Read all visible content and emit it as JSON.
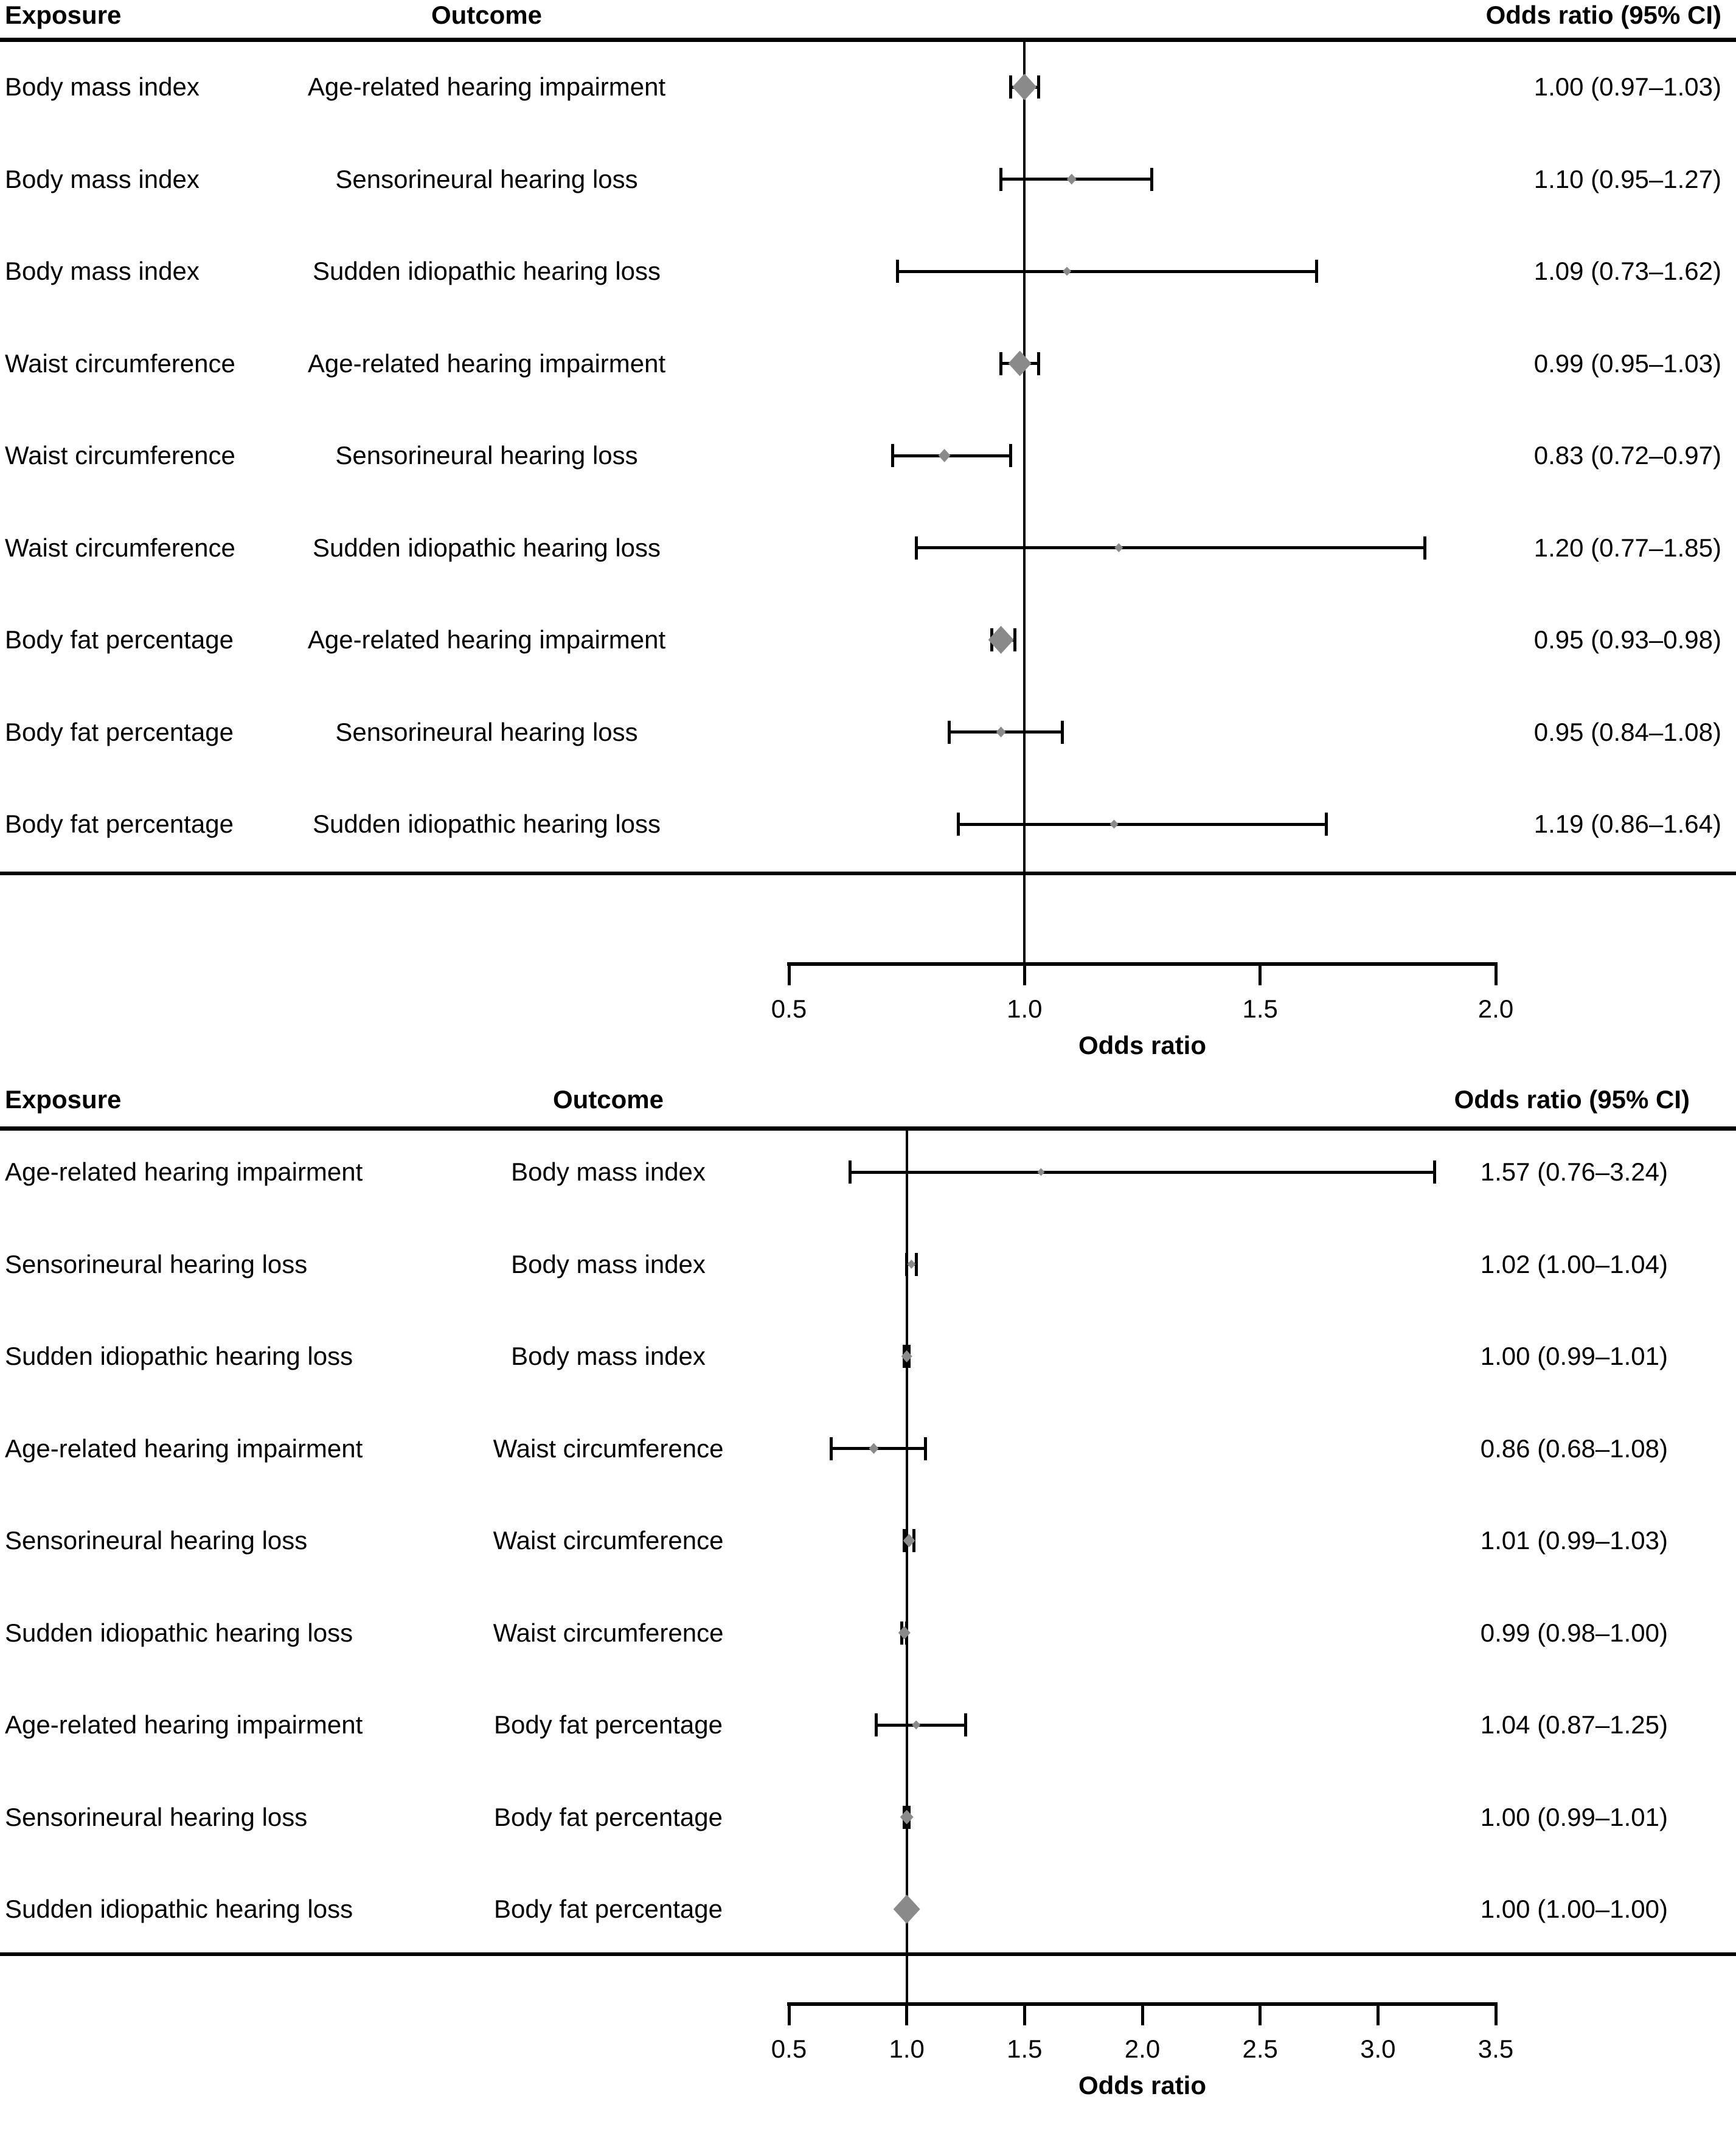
{
  "figure": {
    "background": "#ffffff",
    "text_color": "#000000",
    "line_color": "#000000",
    "marker_color": "#8a8a8a"
  },
  "chart_data": [
    {
      "type": "forest",
      "columns": {
        "exposure": "Exposure",
        "outcome": "Outcome",
        "or_ci": "Odds ratio (95% CI)"
      },
      "xlabel": "Odds ratio",
      "xlim": [
        0.5,
        2.0
      ],
      "xticks": [
        0.5,
        1.0,
        1.5,
        2.0
      ],
      "xtick_labels": [
        "0.5",
        "1.0",
        "1.5",
        "2.0"
      ],
      "reference_line": 1.0,
      "rows": [
        {
          "exposure": "Body mass index",
          "outcome": "Age-related hearing impairment",
          "or": 1.0,
          "ci_low": 0.97,
          "ci_high": 1.03,
          "or_ci_text": "1.00 (0.97–1.03)",
          "marker_size": 40
        },
        {
          "exposure": "Body mass index",
          "outcome": "Sensorineural hearing loss",
          "or": 1.1,
          "ci_low": 0.95,
          "ci_high": 1.27,
          "or_ci_text": "1.10 (0.95–1.27)",
          "marker_size": 16
        },
        {
          "exposure": "Body mass index",
          "outcome": "Sudden idiopathic hearing loss",
          "or": 1.09,
          "ci_low": 0.73,
          "ci_high": 1.62,
          "or_ci_text": "1.09 (0.73–1.62)",
          "marker_size": 14
        },
        {
          "exposure": "Waist circumference",
          "outcome": "Age-related hearing impairment",
          "or": 0.99,
          "ci_low": 0.95,
          "ci_high": 1.03,
          "or_ci_text": "0.99 (0.95–1.03)",
          "marker_size": 38
        },
        {
          "exposure": "Waist circumference",
          "outcome": "Sensorineural hearing loss",
          "or": 0.83,
          "ci_low": 0.72,
          "ci_high": 0.97,
          "or_ci_text": "0.83 (0.72–0.97)",
          "marker_size": 20
        },
        {
          "exposure": "Waist circumference",
          "outcome": "Sudden idiopathic hearing loss",
          "or": 1.2,
          "ci_low": 0.77,
          "ci_high": 1.85,
          "or_ci_text": "1.20 (0.77–1.85)",
          "marker_size": 14
        },
        {
          "exposure": "Body fat percentage",
          "outcome": "Age-related hearing impairment",
          "or": 0.95,
          "ci_low": 0.93,
          "ci_high": 0.98,
          "or_ci_text": "0.95 (0.93–0.98)",
          "marker_size": 42
        },
        {
          "exposure": "Body fat percentage",
          "outcome": "Sensorineural hearing loss",
          "or": 0.95,
          "ci_low": 0.84,
          "ci_high": 1.08,
          "or_ci_text": "0.95 (0.84–1.08)",
          "marker_size": 16
        },
        {
          "exposure": "Body fat percentage",
          "outcome": "Sudden idiopathic hearing loss",
          "or": 1.19,
          "ci_low": 0.86,
          "ci_high": 1.64,
          "or_ci_text": "1.19 (0.86–1.64)",
          "marker_size": 14
        }
      ]
    },
    {
      "type": "forest",
      "columns": {
        "exposure": "Exposure",
        "outcome": "Outcome",
        "or_ci": "Odds ratio (95% CI)"
      },
      "xlabel": "Odds ratio",
      "xlim": [
        0.5,
        3.5
      ],
      "xticks": [
        0.5,
        1.0,
        1.5,
        2.0,
        2.5,
        3.0,
        3.5
      ],
      "xtick_labels": [
        "0.5",
        "1.0",
        "1.5",
        "2.0",
        "2.5",
        "3.0",
        "3.5"
      ],
      "reference_line": 1.0,
      "rows": [
        {
          "exposure": "Age-related hearing impairment",
          "outcome": "Body mass index",
          "or": 1.57,
          "ci_low": 0.76,
          "ci_high": 3.24,
          "or_ci_text": "1.57 (0.76–3.24)",
          "marker_size": 12
        },
        {
          "exposure": "Sensorineural hearing loss",
          "outcome": "Body mass index",
          "or": 1.02,
          "ci_low": 1.0,
          "ci_high": 1.04,
          "or_ci_text": "1.02 (1.00–1.04)",
          "marker_size": 14
        },
        {
          "exposure": "Sudden idiopathic hearing loss",
          "outcome": "Body mass index",
          "or": 1.0,
          "ci_low": 0.99,
          "ci_high": 1.01,
          "or_ci_text": "1.00 (0.99–1.01)",
          "marker_size": 18
        },
        {
          "exposure": "Age-related hearing impairment",
          "outcome": "Waist circumference",
          "or": 0.86,
          "ci_low": 0.68,
          "ci_high": 1.08,
          "or_ci_text": "0.86 (0.68–1.08)",
          "marker_size": 16
        },
        {
          "exposure": "Sensorineural hearing loss",
          "outcome": "Waist circumference",
          "or": 1.01,
          "ci_low": 0.99,
          "ci_high": 1.03,
          "or_ci_text": "1.01 (0.99–1.03)",
          "marker_size": 20
        },
        {
          "exposure": "Sudden idiopathic hearing loss",
          "outcome": "Waist circumference",
          "or": 0.99,
          "ci_low": 0.98,
          "ci_high": 1.0,
          "or_ci_text": "0.99 (0.98–1.00)",
          "marker_size": 20
        },
        {
          "exposure": "Age-related hearing impairment",
          "outcome": "Body fat percentage",
          "or": 1.04,
          "ci_low": 0.87,
          "ci_high": 1.25,
          "or_ci_text": "1.04 (0.87–1.25)",
          "marker_size": 14
        },
        {
          "exposure": "Sensorineural hearing loss",
          "outcome": "Body fat percentage",
          "or": 1.0,
          "ci_low": 0.99,
          "ci_high": 1.01,
          "or_ci_text": "1.00 (0.99–1.01)",
          "marker_size": 22
        },
        {
          "exposure": "Sudden idiopathic hearing loss",
          "outcome": "Body fat percentage",
          "or": 1.0,
          "ci_low": 1.0,
          "ci_high": 1.0,
          "or_ci_text": "1.00 (1.00–1.00)",
          "marker_size": 44
        }
      ]
    }
  ]
}
